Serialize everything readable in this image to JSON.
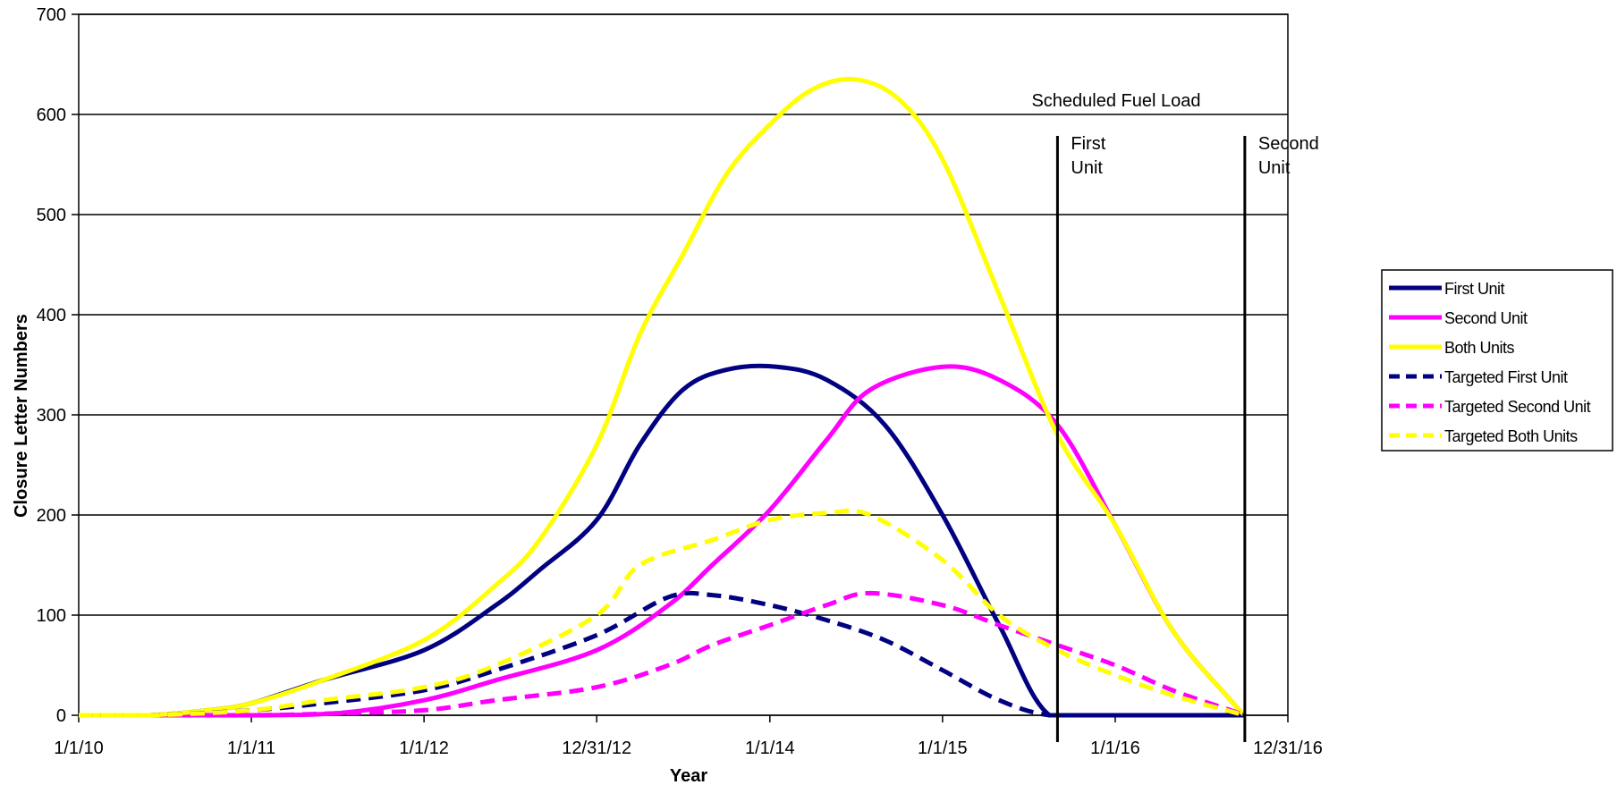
{
  "chart_data": {
    "type": "line",
    "title": "",
    "xlabel": "Year",
    "ylabel": "Closure Letter Numbers",
    "xlim": [
      "2010-01-01",
      "2016-12-31"
    ],
    "ylim": [
      0,
      700
    ],
    "x_ticks": [
      {
        "date": "2010-01-01",
        "label": "1/1/10"
      },
      {
        "date": "2011-01-01",
        "label": "1/1/11"
      },
      {
        "date": "2012-01-01",
        "label": "1/1/12"
      },
      {
        "date": "2012-12-31",
        "label": "12/31/12"
      },
      {
        "date": "2014-01-01",
        "label": "1/1/14"
      },
      {
        "date": "2015-01-01",
        "label": "1/1/15"
      },
      {
        "date": "2016-01-01",
        "label": "1/1/16"
      },
      {
        "date": "2016-12-31",
        "label": "12/31/16"
      }
    ],
    "y_ticks": [
      0,
      100,
      200,
      300,
      400,
      500,
      600,
      700
    ],
    "grid": "horizontal",
    "legend_position": "right",
    "series": [
      {
        "name": "First Unit",
        "color": "#000080",
        "dash": "solid",
        "points": [
          [
            "2010-01-01",
            0
          ],
          [
            "2010-06-01",
            0
          ],
          [
            "2010-10-01",
            5
          ],
          [
            "2011-01-01",
            12
          ],
          [
            "2011-06-01",
            35
          ],
          [
            "2012-01-01",
            65
          ],
          [
            "2012-06-01",
            110
          ],
          [
            "2012-09-01",
            145
          ],
          [
            "2012-12-31",
            195
          ],
          [
            "2013-04-01",
            270
          ],
          [
            "2013-07-01",
            325
          ],
          [
            "2013-10-01",
            345
          ],
          [
            "2014-01-15",
            348
          ],
          [
            "2014-05-01",
            335
          ],
          [
            "2014-09-01",
            290
          ],
          [
            "2015-01-01",
            200
          ],
          [
            "2015-05-01",
            90
          ],
          [
            "2015-08-15",
            0
          ],
          [
            "2016-01-01",
            0
          ],
          [
            "2016-10-01",
            0
          ]
        ]
      },
      {
        "name": "Second Unit",
        "color": "#FF00FF",
        "dash": "solid",
        "points": [
          [
            "2010-01-01",
            0
          ],
          [
            "2011-01-01",
            0
          ],
          [
            "2011-07-01",
            2
          ],
          [
            "2012-01-01",
            15
          ],
          [
            "2012-06-01",
            35
          ],
          [
            "2012-12-31",
            65
          ],
          [
            "2013-06-01",
            110
          ],
          [
            "2013-09-01",
            150
          ],
          [
            "2014-01-01",
            205
          ],
          [
            "2014-05-01",
            275
          ],
          [
            "2014-08-01",
            325
          ],
          [
            "2015-01-01",
            348
          ],
          [
            "2015-05-01",
            335
          ],
          [
            "2015-09-01",
            290
          ],
          [
            "2016-01-01",
            190
          ],
          [
            "2016-05-01",
            85
          ],
          [
            "2016-09-01",
            15
          ],
          [
            "2016-10-01",
            0
          ]
        ]
      },
      {
        "name": "Both Units",
        "color": "#FFFF00",
        "dash": "solid",
        "points": [
          [
            "2010-01-01",
            0
          ],
          [
            "2010-06-01",
            0
          ],
          [
            "2010-10-01",
            5
          ],
          [
            "2011-01-01",
            12
          ],
          [
            "2011-06-01",
            35
          ],
          [
            "2012-01-01",
            75
          ],
          [
            "2012-06-01",
            130
          ],
          [
            "2012-09-01",
            175
          ],
          [
            "2012-12-31",
            270
          ],
          [
            "2013-04-01",
            380
          ],
          [
            "2013-07-01",
            460
          ],
          [
            "2013-10-01",
            540
          ],
          [
            "2014-01-01",
            590
          ],
          [
            "2014-04-01",
            625
          ],
          [
            "2014-07-01",
            635
          ],
          [
            "2014-10-01",
            615
          ],
          [
            "2015-01-01",
            555
          ],
          [
            "2015-05-01",
            420
          ],
          [
            "2015-09-01",
            280
          ],
          [
            "2016-01-01",
            190
          ],
          [
            "2016-05-01",
            85
          ],
          [
            "2016-09-01",
            15
          ],
          [
            "2016-10-01",
            0
          ]
        ]
      },
      {
        "name": "Targeted First Unit",
        "color": "#000080",
        "dash": "dashed",
        "points": [
          [
            "2010-01-01",
            0
          ],
          [
            "2010-06-01",
            0
          ],
          [
            "2011-01-01",
            5
          ],
          [
            "2011-06-01",
            12
          ],
          [
            "2012-01-01",
            25
          ],
          [
            "2012-06-01",
            45
          ],
          [
            "2012-12-31",
            80
          ],
          [
            "2013-06-01",
            118
          ],
          [
            "2013-09-01",
            120
          ],
          [
            "2014-01-01",
            110
          ],
          [
            "2014-05-01",
            95
          ],
          [
            "2014-09-01",
            75
          ],
          [
            "2015-01-01",
            45
          ],
          [
            "2015-05-01",
            15
          ],
          [
            "2015-08-15",
            0
          ],
          [
            "2016-01-01",
            0
          ],
          [
            "2016-10-01",
            0
          ]
        ]
      },
      {
        "name": "Targeted Second Unit",
        "color": "#FF00FF",
        "dash": "dashed",
        "points": [
          [
            "2010-01-01",
            0
          ],
          [
            "2011-01-01",
            0
          ],
          [
            "2011-07-01",
            2
          ],
          [
            "2012-01-01",
            5
          ],
          [
            "2012-06-01",
            15
          ],
          [
            "2012-12-31",
            28
          ],
          [
            "2013-06-01",
            50
          ],
          [
            "2013-09-01",
            70
          ],
          [
            "2014-01-01",
            90
          ],
          [
            "2014-05-01",
            110
          ],
          [
            "2014-08-01",
            122
          ],
          [
            "2015-01-01",
            110
          ],
          [
            "2015-05-01",
            90
          ],
          [
            "2015-09-01",
            70
          ],
          [
            "2016-01-01",
            50
          ],
          [
            "2016-05-01",
            25
          ],
          [
            "2016-09-01",
            5
          ],
          [
            "2016-10-01",
            0
          ]
        ]
      },
      {
        "name": "Targeted Both Units",
        "color": "#FFFF00",
        "dash": "dashed",
        "points": [
          [
            "2010-01-01",
            0
          ],
          [
            "2010-06-01",
            0
          ],
          [
            "2011-01-01",
            5
          ],
          [
            "2011-06-01",
            15
          ],
          [
            "2012-01-01",
            28
          ],
          [
            "2012-06-01",
            50
          ],
          [
            "2012-12-31",
            100
          ],
          [
            "2013-04-01",
            150
          ],
          [
            "2013-09-01",
            175
          ],
          [
            "2014-01-01",
            195
          ],
          [
            "2014-05-01",
            202
          ],
          [
            "2014-08-01",
            200
          ],
          [
            "2015-01-01",
            155
          ],
          [
            "2015-05-01",
            100
          ],
          [
            "2015-09-01",
            65
          ],
          [
            "2016-01-01",
            40
          ],
          [
            "2016-05-01",
            20
          ],
          [
            "2016-10-01",
            0
          ]
        ]
      }
    ],
    "annotations": {
      "header": "Scheduled Fuel Load",
      "markers": [
        {
          "date": "2015-09-01",
          "label_line1": "First",
          "label_line2": "Unit"
        },
        {
          "date": "2016-10-01",
          "label_line1": "Second",
          "label_line2": "Unit"
        }
      ]
    }
  }
}
